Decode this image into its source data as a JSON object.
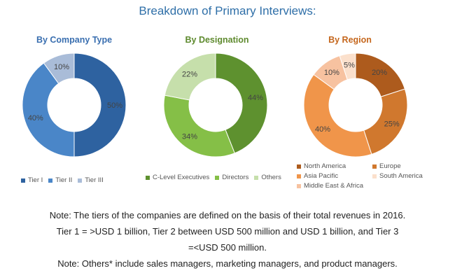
{
  "title": "Breakdown of Primary Interviews:",
  "chart_data": [
    {
      "type": "pie",
      "title": "By Company Type",
      "categories": [
        "Tier I",
        "Tier II",
        "Tier III"
      ],
      "values": [
        50,
        40,
        10
      ],
      "labels": [
        "50%",
        "40%",
        "10%"
      ],
      "colors": [
        "#2e62a0",
        "#4a86c8",
        "#a9bcd8"
      ],
      "legend_position": "bottom"
    },
    {
      "type": "pie",
      "title": "By Designation",
      "categories": [
        "C-Level Executives",
        "Directors",
        "Others"
      ],
      "values": [
        44,
        34,
        22
      ],
      "labels": [
        "44%",
        "34%",
        "22%"
      ],
      "colors": [
        "#5e912f",
        "#85bf47",
        "#c6dfab"
      ],
      "legend_position": "bottom"
    },
    {
      "type": "pie",
      "title": "By Region",
      "categories": [
        "North America",
        "Europe",
        "Asia Pacific",
        "Middle East & Africa",
        "South America"
      ],
      "values": [
        20,
        25,
        40,
        10,
        5
      ],
      "labels": [
        "20%",
        "25%",
        "40%",
        "10%",
        "5%"
      ],
      "colors": [
        "#ad5b1d",
        "#d0782e",
        "#f0954a",
        "#f7c2a0",
        "#fbe0cc"
      ],
      "legend_entries": [
        "North America",
        "Europe",
        "Asia Pacific",
        "South America",
        "Middle East & Africa"
      ],
      "legend_position": "bottom"
    }
  ],
  "notes": [
    "Note: The tiers of the companies are defined on the basis of their total revenues in 2016.",
    "Tier 1 = >USD 1 billion, Tier 2 between USD 500 million and USD 1 billion, and Tier 3",
    "=<USD 500 million.",
    "Note: Others* include sales managers, marketing managers, and product managers."
  ]
}
